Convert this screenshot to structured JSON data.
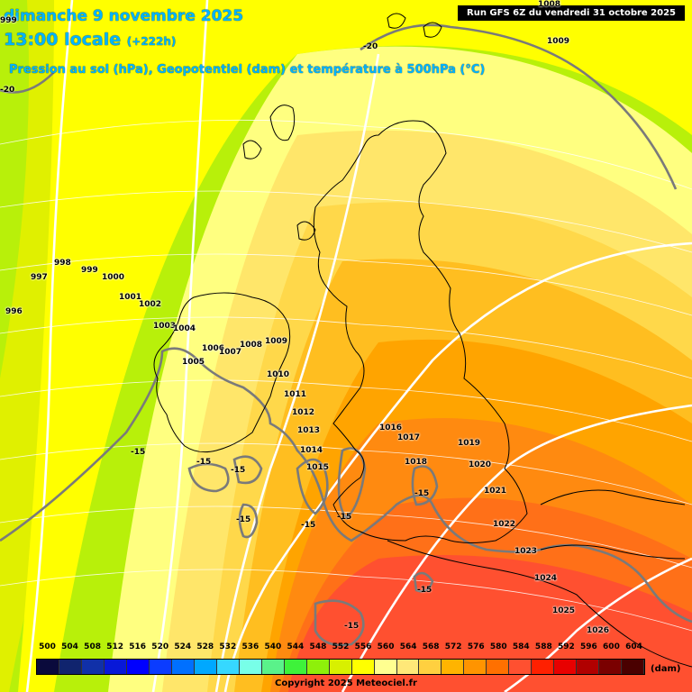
{
  "header": {
    "date_line": "dimanche 9 novembre 2025",
    "time_line": "13:00 locale",
    "offset": "(+222h)",
    "parameters": "Pression au sol (hPa), Geopotentiel (dam) et température à 500hPa (°C)",
    "run": "Run GFS 6Z du vendredi 31 octobre 2025"
  },
  "pressure_labels": [
    "1008",
    "1009",
    "999",
    "997",
    "998",
    "999",
    "1000",
    "996",
    "1001",
    "1002",
    "1003",
    "1004",
    "1005",
    "1006",
    "1007",
    "1008",
    "1009",
    "1010",
    "1011",
    "1012",
    "1013",
    "1014",
    "1015",
    "1016",
    "1017",
    "1018",
    "1019",
    "1020",
    "1021",
    "1022",
    "1023",
    "1024",
    "1025",
    "1026"
  ],
  "temperature_labels": [
    "-20",
    "-20",
    "-15",
    "-15",
    "-15",
    "-15",
    "-15",
    "-15",
    "-15",
    "-15",
    "-15"
  ],
  "legend": {
    "values": [
      "500",
      "504",
      "508",
      "512",
      "516",
      "520",
      "524",
      "528",
      "532",
      "536",
      "540",
      "544",
      "548",
      "552",
      "556",
      "560",
      "564",
      "568",
      "572",
      "576",
      "580",
      "584",
      "588",
      "592",
      "596",
      "600",
      "604"
    ],
    "colors": [
      "#0a0a3c",
      "#10246e",
      "#1030a8",
      "#0818d8",
      "#0000ff",
      "#0b3cff",
      "#0070ff",
      "#00a8ff",
      "#36d8ff",
      "#78ffe8",
      "#5af28a",
      "#3ef23a",
      "#8ef00a",
      "#d8f000",
      "#ffff00",
      "#ffff90",
      "#ffe878",
      "#ffd040",
      "#ffb400",
      "#ff9400",
      "#ff7000",
      "#ff5030",
      "#ff2000",
      "#e80000",
      "#b00000",
      "#7a0000",
      "#4a0000"
    ],
    "unit": "(dam)"
  },
  "copyright": "Copyright 2025 Meteociel.fr"
}
